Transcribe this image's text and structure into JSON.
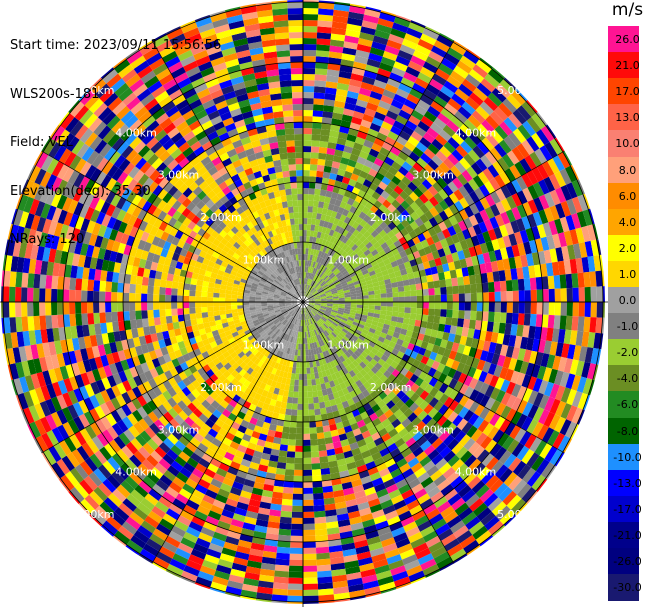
{
  "info": {
    "start_time": "Start time: 2023/09/11 15:56:56",
    "site": "WLS200s-181",
    "field": "Field: VEL",
    "elevation": "Elevation(deg): 35.30",
    "nrays": "NRays: 120"
  },
  "colorbar": {
    "unit": "m/s",
    "ticks": [
      "26.0",
      "21.0",
      "17.0",
      "13.0",
      "10.0",
      "8.0",
      "6.0",
      "4.0",
      "2.0",
      "1.0",
      "0.0",
      "-1.0",
      "-2.0",
      "-4.0",
      "-6.0",
      "-8.0",
      "-10.0",
      "-13.0",
      "-17.0",
      "-21.0",
      "-26.0",
      "-30.0"
    ],
    "colors": [
      "#ff1493",
      "#ff0a0a",
      "#ff4500",
      "#ff6347",
      "#fa8072",
      "#ffa07a",
      "#ff8c00",
      "#ffa500",
      "#ffff00",
      "#ffd700",
      "#a0a0a0",
      "#808080",
      "#9acd32",
      "#6b8e23",
      "#228b22",
      "#006400",
      "#1e90ff",
      "#0000ff",
      "#0000cd",
      "#00008b",
      "#000080",
      "#191970"
    ]
  },
  "chart_data": {
    "type": "heatmap",
    "projection": "polar (PPI)",
    "field": "VEL",
    "unit": "m/s",
    "nrays": 120,
    "range_ring_labels": [
      "1.00km",
      "2.00km",
      "3.00km",
      "4.00km",
      "5.00km"
    ],
    "value_range": [
      -30.0,
      26.0
    ],
    "near_field_pattern": "low-velocity core; approaching (yellow, +2 to +4) to the west/south-west, receding (green, -1 to -4) to the east; beyond ~2.5 km noisy random values across the full scale"
  }
}
